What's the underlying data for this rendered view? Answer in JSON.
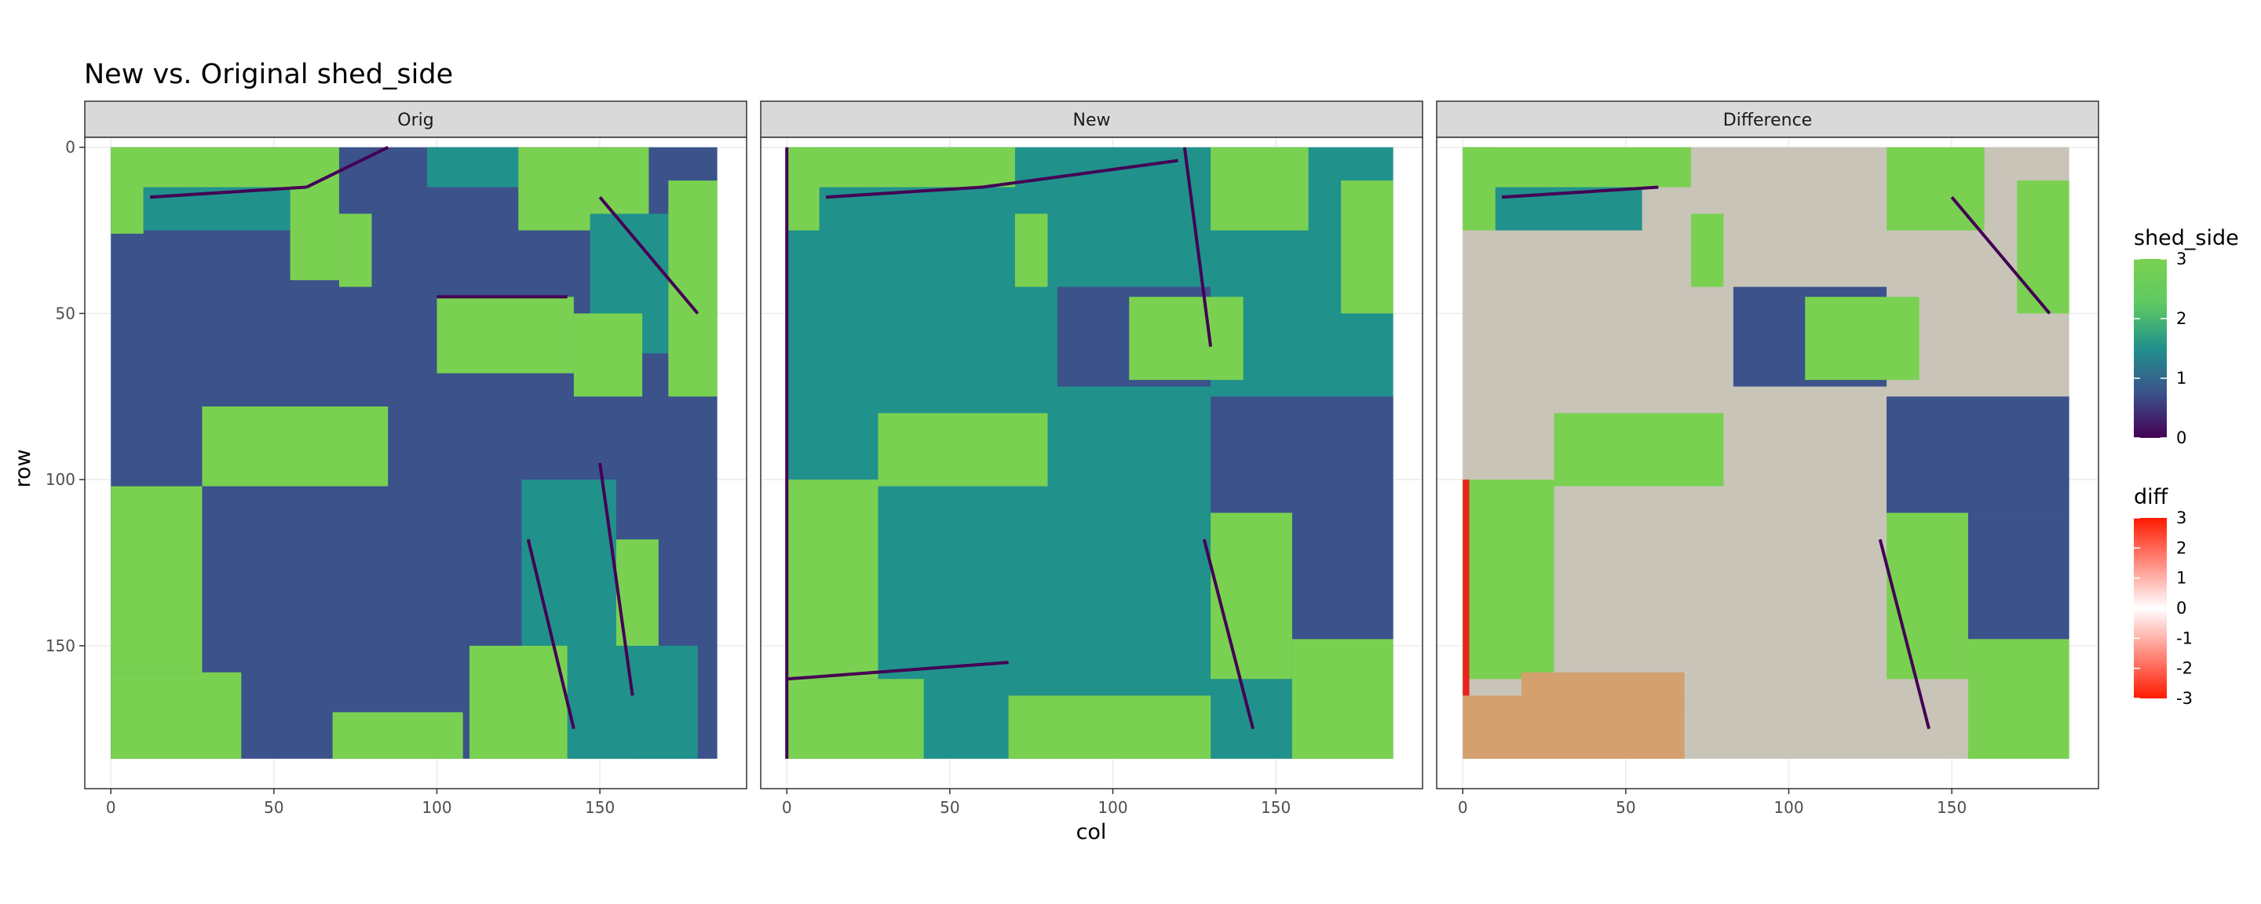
{
  "chart_data": {
    "type": "heatmap",
    "title": "New vs. Original shed_side",
    "xlabel": "col",
    "ylabel": "row",
    "xlim": [
      -8,
      195
    ],
    "ylim": [
      -3,
      193
    ],
    "y_reversed": true,
    "grid": true,
    "x_ticks": [
      "0",
      "50",
      "100",
      "150"
    ],
    "x_tick_values": [
      0,
      50,
      100,
      150
    ],
    "y_ticks": [
      "0",
      "50",
      "100",
      "150"
    ],
    "y_tick_values": [
      0,
      50,
      100,
      150
    ],
    "grid_extent": {
      "cols": 186,
      "rows": 184
    },
    "facets": [
      {
        "label": "Orig"
      },
      {
        "label": "New"
      },
      {
        "label": "Difference"
      }
    ],
    "legends": [
      {
        "title": "shed_side",
        "labels": [
          "3",
          "2",
          "1",
          "0"
        ],
        "values": [
          3,
          2,
          1,
          0
        ],
        "colors": [
          "#440154",
          "#3b528b",
          "#21918c",
          "#7ad151"
        ]
      },
      {
        "title": "diff",
        "labels": [
          "3",
          "2",
          "1",
          "0",
          "-1",
          "-2",
          "-3"
        ],
        "values": [
          3,
          2,
          1,
          0,
          -1,
          -2,
          -3
        ],
        "colors": [
          "#ff1a00",
          "#ffffff",
          "#ff1a00"
        ]
      }
    ],
    "colors": {
      "v0": "#440154",
      "v1": "#3b528b",
      "v2": "#21918c",
      "v3": "#7ad151",
      "diff_base": "#c8c4b8",
      "diff_pos": "#d3a06e",
      "diff_neg": "#e8241b"
    }
  }
}
